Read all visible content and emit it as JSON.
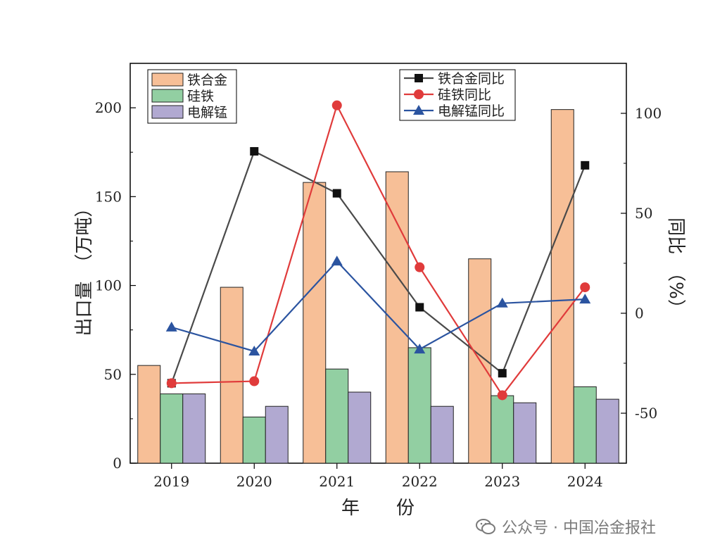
{
  "chart_data": {
    "type": "bar+line",
    "categories": [
      "2019",
      "2020",
      "2021",
      "2022",
      "2023",
      "2024"
    ],
    "bar_series": [
      {
        "name": "铁合金",
        "values": [
          55,
          99,
          158,
          164,
          115,
          199
        ],
        "color": "#f7bf97"
      },
      {
        "name": "硅铁",
        "values": [
          39,
          26,
          53,
          65,
          38,
          43
        ],
        "color": "#92cfa2"
      },
      {
        "name": "电解锰",
        "values": [
          39,
          32,
          40,
          32,
          34,
          36
        ],
        "color": "#b1a9d1"
      }
    ],
    "line_series": [
      {
        "name": "铁合金同比",
        "values": [
          -35,
          81,
          60,
          3,
          -30,
          74
        ],
        "color": "#4a4a4a",
        "marker": "square"
      },
      {
        "name": "硅铁同比",
        "values": [
          -35,
          -34,
          104,
          23,
          -41,
          13
        ],
        "color": "#e03b3b",
        "marker": "circle"
      },
      {
        "name": "电解锰同比",
        "values": [
          -7,
          -19,
          26,
          -18,
          5,
          7
        ],
        "color": "#2b54a0",
        "marker": "triangle"
      }
    ],
    "xlabel": "年　　份",
    "ylabel_left": "出口量　（万吨）",
    "ylabel_right": "同比　（%）",
    "ylim_left": [
      0,
      225
    ],
    "ylim_right": [
      -75,
      125
    ],
    "yticks_left": [
      0,
      50,
      100,
      150,
      200
    ],
    "yticks_right": [
      -50,
      0,
      50,
      100
    ],
    "grid": false,
    "legend_left_placement": "top-left",
    "legend_right_placement": "top-center"
  },
  "watermark": {
    "text": "公众号 · 中国冶金报社",
    "icon": "wechat-icon"
  }
}
